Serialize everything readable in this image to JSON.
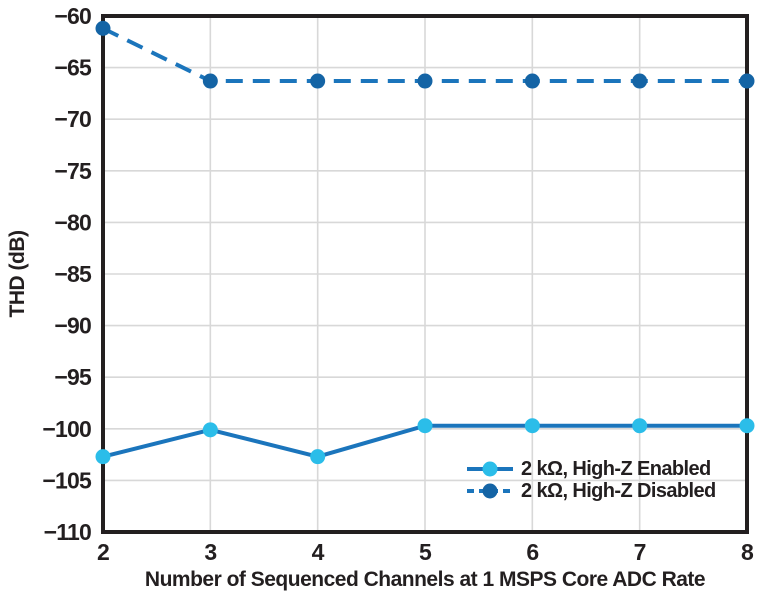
{
  "chart_data": {
    "type": "line",
    "title": "",
    "xlabel": "Number of Sequenced Channels at 1 MSPS Core ADC Rate",
    "ylabel": "THD (dB)",
    "x": [
      2,
      3,
      4,
      5,
      6,
      7,
      8
    ],
    "xticks": [
      2,
      3,
      4,
      5,
      6,
      7,
      8
    ],
    "yticks": [
      -60,
      -65,
      -70,
      -75,
      -80,
      -85,
      -90,
      -95,
      -100,
      -105,
      -110
    ],
    "xlim": [
      2,
      8
    ],
    "ylim": [
      -110,
      -60
    ],
    "grid": true,
    "legend_position": "lower right",
    "series": [
      {
        "name": "2 kΩ, High-Z Enabled",
        "style": "solid",
        "line_color": "#1B75BC",
        "marker_color": "#2BBDE9",
        "values": [
          -102.7,
          -100.1,
          -102.7,
          -99.7,
          -99.7,
          -99.7,
          -99.7
        ]
      },
      {
        "name": "2 kΩ, High-Z Disabled",
        "style": "dashed",
        "line_color": "#1B75BC",
        "marker_color": "#1464A5",
        "values": [
          -61.2,
          -66.3,
          -66.3,
          -66.3,
          -66.3,
          -66.3,
          -66.3
        ]
      }
    ],
    "colors": {
      "frame": "#231F20",
      "grid": "#D8D8D8",
      "text": "#231F20",
      "background": "#FFFFFF"
    }
  }
}
